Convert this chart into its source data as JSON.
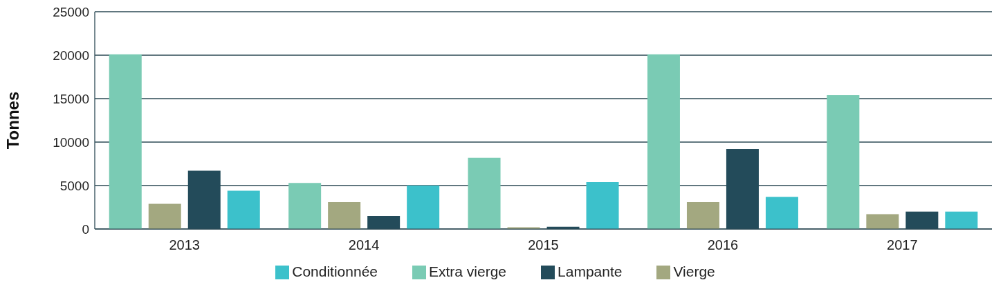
{
  "chart_data": {
    "type": "bar",
    "ylabel": "Tonnes",
    "categories": [
      "2013",
      "2014",
      "2015",
      "2016",
      "2017"
    ],
    "series": [
      {
        "name": "Extra vierge",
        "color": "#7acbb4",
        "values": [
          20100,
          5300,
          8200,
          20100,
          15400
        ]
      },
      {
        "name": "Vierge",
        "color": "#a3a880",
        "values": [
          2900,
          3100,
          200,
          3100,
          1700
        ]
      },
      {
        "name": "Lampante",
        "color": "#234b5a",
        "values": [
          6700,
          1500,
          250,
          9200,
          2000
        ]
      },
      {
        "name": "Conditionnée",
        "color": "#3cc1cb",
        "values": [
          4400,
          5000,
          5400,
          3700,
          2000
        ]
      }
    ],
    "ylim": [
      0,
      25000
    ],
    "yticks": [
      0,
      5000,
      10000,
      15000,
      20000,
      25000
    ],
    "grid": "y",
    "legend": "bottom"
  }
}
